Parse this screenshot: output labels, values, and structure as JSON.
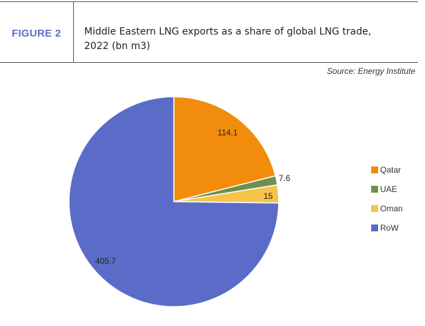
{
  "figure": {
    "label": "FIGURE 2",
    "title_line1": "Middle Eastern LNG exports as a share of global LNG trade,",
    "title_line2": "2022 (bn m3)",
    "source": "Source: Energy Institute"
  },
  "chart_data": {
    "type": "pie",
    "start_angle_deg": 0,
    "direction": "clockwise",
    "slices": [
      {
        "label": "Qatar",
        "value": 114.1,
        "display": "114.1",
        "color": "#f28c0c"
      },
      {
        "label": "UAE",
        "value": 7.6,
        "display": "7.6",
        "color": "#6f8f4e"
      },
      {
        "label": "Oman",
        "value": 15,
        "display": "15",
        "color": "#f5c44a"
      },
      {
        "label": "RoW",
        "value": 405.7,
        "display": "405.7",
        "color": "#5a6cc8"
      }
    ],
    "legend_position": "right"
  }
}
